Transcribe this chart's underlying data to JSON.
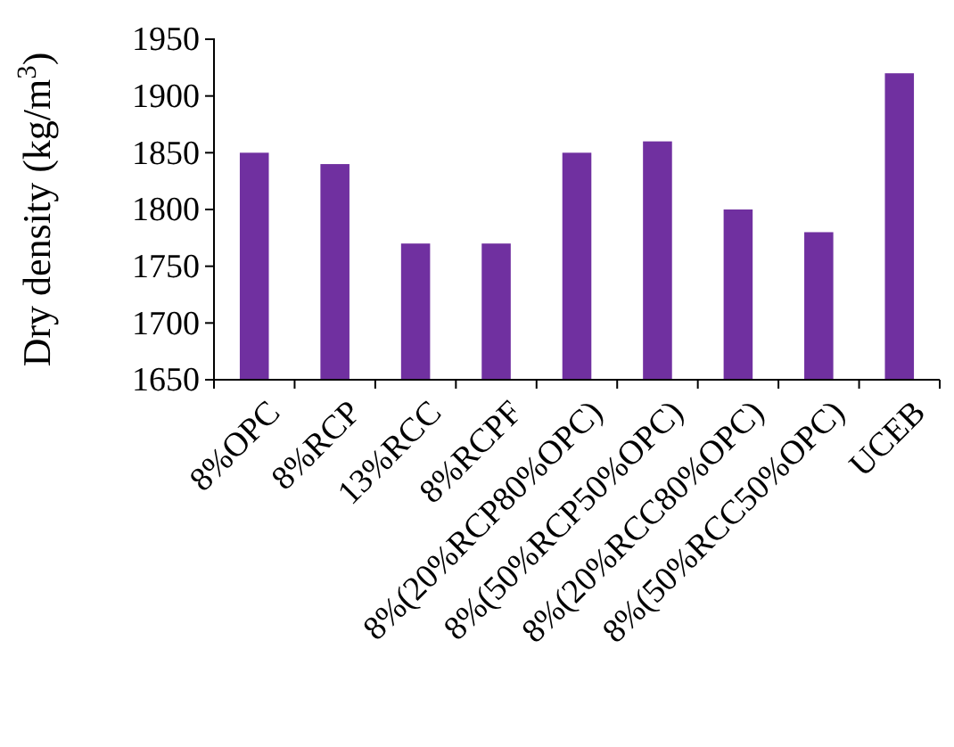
{
  "chart_data": {
    "type": "bar",
    "ylabel": "Dry density (kg/m$^{3}$)",
    "categories": [
      "8%OPC",
      "8%RCP",
      "13%RCC",
      "8%RCPF",
      "8%(20%RCP80%OPC)",
      "8%(50%RCP50%OPC)",
      "8%(20%RCC80%OPC)",
      "8%(50%RCC50%OPC)",
      "UCEB"
    ],
    "values": [
      1850,
      1840,
      1770,
      1770,
      1850,
      1860,
      1800,
      1780,
      1920
    ],
    "color": "#7030a0",
    "ylim": [
      1650,
      1950
    ],
    "yticks": [
      1650,
      1700,
      1750,
      1800,
      1850,
      1900,
      1950
    ]
  }
}
